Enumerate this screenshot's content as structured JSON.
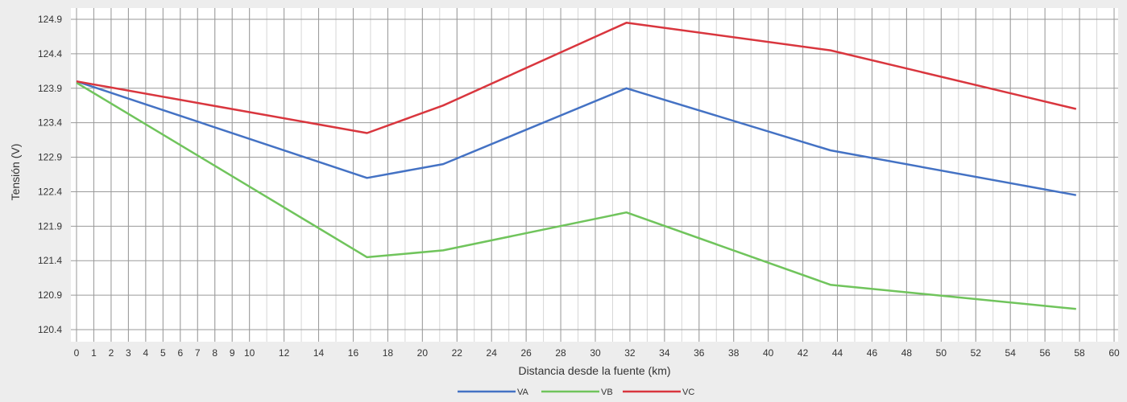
{
  "chart_data": {
    "type": "line",
    "title": "",
    "xlabel": "Distancia desde la fuente (km)",
    "ylabel": "Tensión (V)",
    "xlim": [
      0,
      60
    ],
    "ylim": [
      120.4,
      124.9
    ],
    "x_ticks": [
      0,
      1,
      2,
      3,
      4,
      5,
      6,
      7,
      8,
      9,
      10,
      12,
      14,
      16,
      18,
      20,
      22,
      24,
      26,
      28,
      30,
      32,
      34,
      36,
      38,
      40,
      42,
      44,
      46,
      48,
      50,
      52,
      54,
      56,
      58,
      60
    ],
    "x_tick_labels": [
      "0",
      "1",
      "2",
      "3",
      "4",
      "5",
      "6",
      "7",
      "8",
      "9",
      "10",
      "12",
      "14",
      "16",
      "18",
      "20",
      "22",
      "24",
      "26",
      "28",
      "30",
      "32",
      "34",
      "36",
      "38",
      "40",
      "42",
      "44",
      "46",
      "48",
      "50",
      "52",
      "54",
      "56",
      "58",
      "60"
    ],
    "y_ticks": [
      120.4,
      120.9,
      121.4,
      121.9,
      122.4,
      122.9,
      123.4,
      123.9,
      124.4,
      124.9
    ],
    "y_tick_labels": [
      "120.4",
      "120.9",
      "121.4",
      "121.9",
      "122.4",
      "122.9",
      "123.4",
      "123.9",
      "124.4",
      "124.9"
    ],
    "x_minor_step": 1,
    "grid": true,
    "legend_position": "bottom-center",
    "series": [
      {
        "name": "VA",
        "color": "#4472c4",
        "points": [
          [
            0,
            124.0
          ],
          [
            16.8,
            122.6
          ],
          [
            21.2,
            122.8
          ],
          [
            31.8,
            123.9
          ],
          [
            43.6,
            123.0
          ],
          [
            57.8,
            122.35
          ]
        ]
      },
      {
        "name": "VB",
        "color": "#70c45c",
        "points": [
          [
            0,
            123.98
          ],
          [
            16.8,
            121.45
          ],
          [
            21.2,
            121.55
          ],
          [
            31.8,
            122.1
          ],
          [
            43.6,
            121.05
          ],
          [
            57.8,
            120.7
          ]
        ]
      },
      {
        "name": "VC",
        "color": "#d9363e",
        "points": [
          [
            0,
            124.0
          ],
          [
            16.8,
            123.25
          ],
          [
            21.2,
            123.65
          ],
          [
            31.8,
            124.85
          ],
          [
            43.6,
            124.45
          ],
          [
            57.8,
            123.6
          ]
        ]
      }
    ]
  }
}
